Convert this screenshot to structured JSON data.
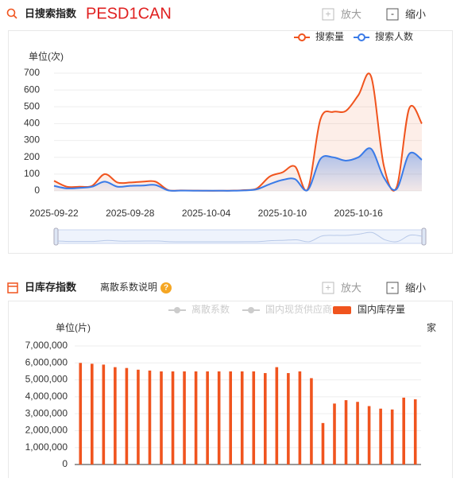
{
  "panels": [
    {
      "title": "日搜索指数",
      "code": "PESD1CAN",
      "zoom_in": "放大",
      "zoom_out": "缩小"
    },
    {
      "title": "日库存指数",
      "link": "离散系数说明",
      "help": "?",
      "zoom_in": "放大",
      "zoom_out": "缩小"
    }
  ],
  "chart_data": [
    {
      "type": "line",
      "y_label": "单位(次)",
      "categories": [
        "2025-09-22",
        null,
        null,
        null,
        null,
        null,
        "2025-09-28",
        null,
        null,
        null,
        null,
        null,
        "2025-10-04",
        null,
        null,
        null,
        null,
        null,
        "2025-10-10",
        null,
        null,
        null,
        null,
        null,
        "2025-10-16",
        null,
        null,
        null,
        null,
        null
      ],
      "series": [
        {
          "name": "搜索量",
          "color": "#f0541e",
          "values": [
            60,
            25,
            25,
            30,
            100,
            50,
            50,
            55,
            55,
            5,
            3,
            2,
            1,
            1,
            2,
            5,
            15,
            85,
            110,
            145,
            10,
            425,
            470,
            475,
            570,
            680,
            150,
            20,
            490,
            400
          ]
        },
        {
          "name": "搜索人数",
          "color": "#3a7be8",
          "values": [
            30,
            15,
            18,
            25,
            55,
            25,
            30,
            32,
            35,
            3,
            2,
            1,
            1,
            1,
            1,
            3,
            10,
            40,
            65,
            70,
            5,
            190,
            200,
            180,
            200,
            250,
            80,
            10,
            220,
            185
          ]
        }
      ],
      "ylim": [
        0,
        700
      ],
      "yticks": [
        0,
        100,
        200,
        300,
        400,
        500,
        600,
        700
      ],
      "grid": true,
      "legend": "top-right"
    },
    {
      "type": "bar",
      "y_label": "单位(片)",
      "y2_label": "家",
      "legend_items": [
        {
          "name": "离散系数",
          "color": "#cccccc"
        },
        {
          "name": "国内现货供应商",
          "color": "#cccccc"
        }
      ],
      "series": [
        {
          "name": "国内库存量",
          "color": "#f0541e",
          "values": [
            6000000,
            5950000,
            5900000,
            5750000,
            5700000,
            5600000,
            5550000,
            5500000,
            5500000,
            5500000,
            5500000,
            5500000,
            5500000,
            5500000,
            5500000,
            5500000,
            5400000,
            5750000,
            5400000,
            5500000,
            5100000,
            2450000,
            3600000,
            3800000,
            3700000,
            3450000,
            3300000,
            3250000,
            3950000,
            3850000
          ]
        }
      ],
      "ylim": [
        0,
        7000000
      ],
      "yticks": [
        0,
        {
          "value": 1000000,
          "label": "1,000,000"
        },
        {
          "value": 2000000,
          "label": "2,000,000"
        },
        {
          "value": 3000000,
          "label": "3,000,000"
        },
        {
          "value": 4000000,
          "label": "4,000,000"
        },
        {
          "value": 5000000,
          "label": "5,000,000"
        },
        {
          "value": 6000000,
          "label": "6,000,000"
        },
        {
          "value": 7000000,
          "label": "7,000,000"
        }
      ],
      "grid": true,
      "legend": "top-right"
    }
  ]
}
